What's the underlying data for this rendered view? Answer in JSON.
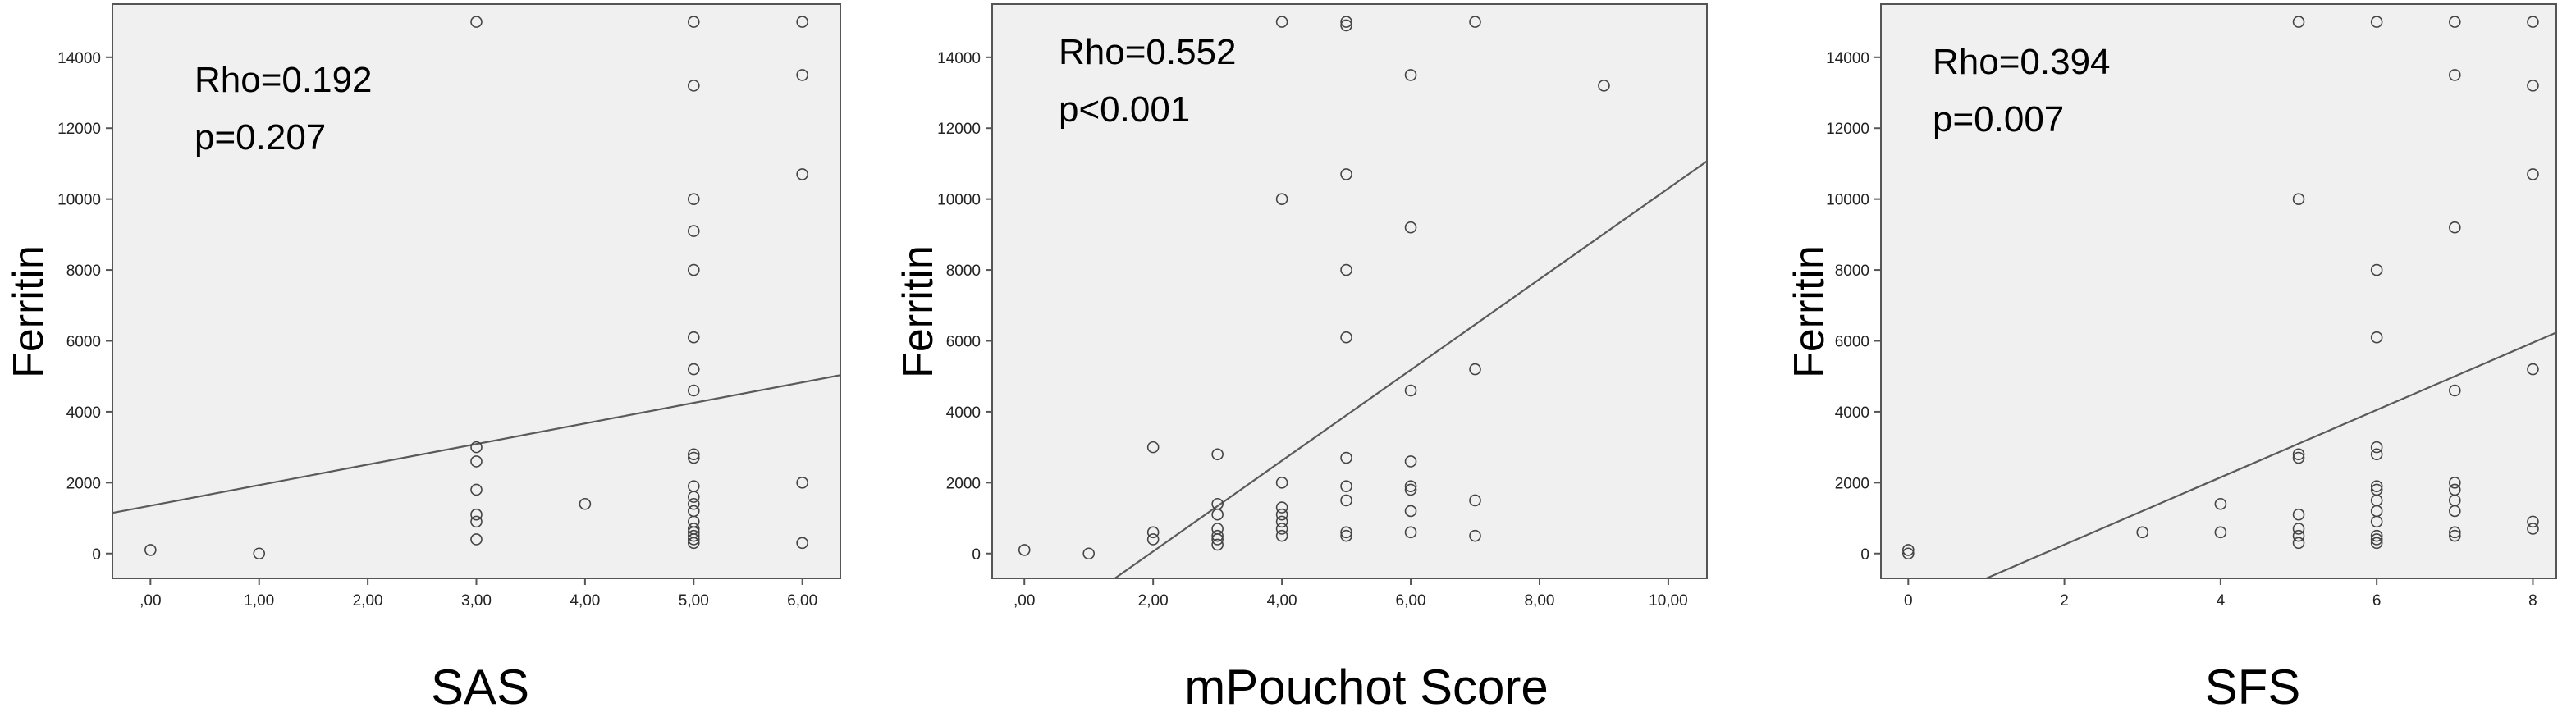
{
  "figure": {
    "colors": {
      "plot_bg": "#f0f0f0",
      "frame": "#555555",
      "point": "#444444",
      "fit_line": "#5a5a5a",
      "text": "#000000"
    }
  },
  "chart_data": [
    {
      "type": "scatter",
      "title": "",
      "xlabel": "SAS",
      "ylabel": "Ferritin",
      "annotation": [
        "Rho=0.192",
        "p=0.207"
      ],
      "xlim": [
        -0.35,
        6.35
      ],
      "ylim": [
        -700,
        15500
      ],
      "xticks": [
        0,
        1,
        2,
        3,
        4,
        5,
        6
      ],
      "xtick_labels": [
        ",00",
        "1,00",
        "2,00",
        "3,00",
        "4,00",
        "5,00",
        "6,00"
      ],
      "yticks": [
        0,
        2000,
        4000,
        6000,
        8000,
        10000,
        12000,
        14000
      ],
      "ytick_labels": [
        "0",
        "2000",
        "4000",
        "6000",
        "8000",
        "10000",
        "12000",
        "14000"
      ],
      "grid": false,
      "points": [
        [
          0,
          100
        ],
        [
          1,
          0
        ],
        [
          3,
          15000
        ],
        [
          3,
          3000
        ],
        [
          3,
          2600
        ],
        [
          3,
          1800
        ],
        [
          3,
          1100
        ],
        [
          3,
          900
        ],
        [
          3,
          400
        ],
        [
          4,
          1400
        ],
        [
          5,
          15000
        ],
        [
          5,
          13200
        ],
        [
          5,
          10000
        ],
        [
          5,
          9100
        ],
        [
          5,
          8000
        ],
        [
          5,
          6100
        ],
        [
          5,
          5200
        ],
        [
          5,
          4600
        ],
        [
          5,
          2800
        ],
        [
          5,
          2700
        ],
        [
          5,
          1900
        ],
        [
          5,
          1600
        ],
        [
          5,
          1400
        ],
        [
          5,
          1200
        ],
        [
          5,
          900
        ],
        [
          5,
          700
        ],
        [
          5,
          600
        ],
        [
          5,
          500
        ],
        [
          5,
          400
        ],
        [
          5,
          300
        ],
        [
          6,
          15000
        ],
        [
          6,
          13500
        ],
        [
          6,
          10700
        ],
        [
          6,
          2000
        ],
        [
          6,
          300
        ]
      ],
      "fit_line": {
        "intercept": 1350,
        "slope": 580
      }
    },
    {
      "type": "scatter",
      "title": "",
      "xlabel": "mPouchot Score",
      "ylabel": "Ferritin",
      "annotation": [
        "Rho=0.552",
        "p<0.001"
      ],
      "xlim": [
        -0.5,
        10.6
      ],
      "ylim": [
        -700,
        15500
      ],
      "xticks": [
        0,
        2,
        4,
        6,
        8,
        10
      ],
      "xtick_labels": [
        ",00",
        "2,00",
        "4,00",
        "6,00",
        "8,00",
        "10,00"
      ],
      "yticks": [
        0,
        2000,
        4000,
        6000,
        8000,
        10000,
        12000,
        14000
      ],
      "ytick_labels": [
        "0",
        "2000",
        "4000",
        "6000",
        "8000",
        "10000",
        "12000",
        "14000"
      ],
      "grid": false,
      "points": [
        [
          0,
          100
        ],
        [
          1,
          0
        ],
        [
          2,
          3000
        ],
        [
          2,
          600
        ],
        [
          2,
          400
        ],
        [
          3,
          2800
        ],
        [
          3,
          1400
        ],
        [
          3,
          1100
        ],
        [
          3,
          700
        ],
        [
          3,
          500
        ],
        [
          3,
          400
        ],
        [
          3,
          250
        ],
        [
          4,
          15000
        ],
        [
          4,
          10000
        ],
        [
          4,
          2000
        ],
        [
          4,
          1300
        ],
        [
          4,
          1100
        ],
        [
          4,
          900
        ],
        [
          4,
          700
        ],
        [
          4,
          500
        ],
        [
          5,
          15000
        ],
        [
          5,
          14900
        ],
        [
          5,
          10700
        ],
        [
          5,
          8000
        ],
        [
          5,
          6100
        ],
        [
          5,
          2700
        ],
        [
          5,
          1900
        ],
        [
          5,
          1500
        ],
        [
          5,
          600
        ],
        [
          5,
          500
        ],
        [
          6,
          13500
        ],
        [
          6,
          9200
        ],
        [
          6,
          4600
        ],
        [
          6,
          2600
        ],
        [
          6,
          1900
        ],
        [
          6,
          1800
        ],
        [
          6,
          1200
        ],
        [
          6,
          600
        ],
        [
          7,
          15000
        ],
        [
          7,
          5200
        ],
        [
          7,
          1500
        ],
        [
          7,
          500
        ],
        [
          9,
          13200
        ]
      ],
      "fit_line": {
        "intercept": -2500,
        "slope": 1280
      }
    },
    {
      "type": "scatter",
      "title": "",
      "xlabel": "SFS",
      "ylabel": "Ferritin",
      "annotation": [
        "Rho=0.394",
        "p=0.007"
      ],
      "xlim": [
        -0.35,
        8.3
      ],
      "ylim": [
        -700,
        15500
      ],
      "xticks": [
        0,
        2,
        4,
        6,
        8
      ],
      "xtick_labels": [
        "0",
        "2",
        "4",
        "6",
        "8"
      ],
      "yticks": [
        0,
        2000,
        4000,
        6000,
        8000,
        10000,
        12000,
        14000
      ],
      "ytick_labels": [
        "0",
        "2000",
        "4000",
        "6000",
        "8000",
        "10000",
        "12000",
        "14000"
      ],
      "grid": false,
      "points": [
        [
          0,
          100
        ],
        [
          0,
          0
        ],
        [
          3,
          600
        ],
        [
          4,
          1400
        ],
        [
          4,
          600
        ],
        [
          5,
          15000
        ],
        [
          5,
          10000
        ],
        [
          5,
          2800
        ],
        [
          5,
          2700
        ],
        [
          5,
          1100
        ],
        [
          5,
          700
        ],
        [
          5,
          500
        ],
        [
          5,
          300
        ],
        [
          6,
          15000
        ],
        [
          6,
          8000
        ],
        [
          6,
          6100
        ],
        [
          6,
          3000
        ],
        [
          6,
          2800
        ],
        [
          6,
          1900
        ],
        [
          6,
          1800
        ],
        [
          6,
          1500
        ],
        [
          6,
          1200
        ],
        [
          6,
          900
        ],
        [
          6,
          500
        ],
        [
          6,
          400
        ],
        [
          6,
          300
        ],
        [
          7,
          15000
        ],
        [
          7,
          13500
        ],
        [
          7,
          9200
        ],
        [
          7,
          4600
        ],
        [
          7,
          2000
        ],
        [
          7,
          1800
        ],
        [
          7,
          1500
        ],
        [
          7,
          1200
        ],
        [
          7,
          600
        ],
        [
          7,
          500
        ],
        [
          8,
          15000
        ],
        [
          8,
          13200
        ],
        [
          8,
          10700
        ],
        [
          8,
          5200
        ],
        [
          8,
          900
        ],
        [
          8,
          700
        ]
      ],
      "fit_line": {
        "intercept": -1650,
        "slope": 950
      }
    }
  ]
}
